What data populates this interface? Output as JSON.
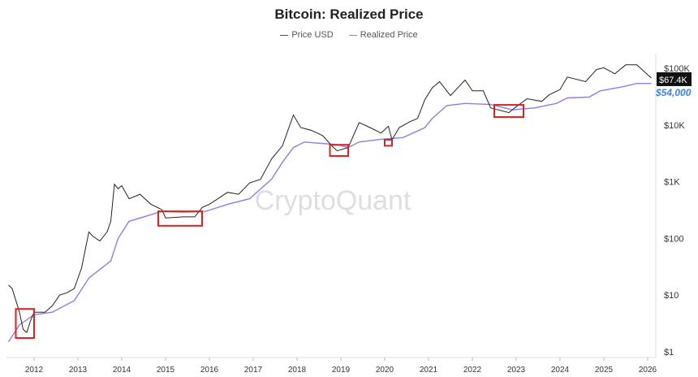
{
  "chart_data": {
    "type": "line",
    "title": "Bitcoin: Realized Price",
    "watermark": "CryptoQuant",
    "y_scale": "log",
    "ylim": [
      1,
      200000
    ],
    "y_ticks": [
      {
        "v": 1,
        "label": "$1"
      },
      {
        "v": 10,
        "label": "$10"
      },
      {
        "v": 100,
        "label": "$100"
      },
      {
        "v": 1000,
        "label": "$1K"
      },
      {
        "v": 10000,
        "label": "$10K"
      },
      {
        "v": 100000,
        "label": "$100K"
      }
    ],
    "x_ticks": [
      "2012",
      "2013",
      "2014",
      "2015",
      "2016",
      "2017",
      "2018",
      "2019",
      "2020",
      "2021",
      "2022",
      "2023",
      "2024",
      "2025",
      "2026"
    ],
    "legend_position": "top-center",
    "grid": false,
    "series": [
      {
        "name": "Price USD",
        "color": "#222222",
        "points": [
          [
            "2011-06",
            15
          ],
          [
            "2011-07",
            13
          ],
          [
            "2011-09",
            5
          ],
          [
            "2011-10",
            2.5
          ],
          [
            "2011-11",
            2.2
          ],
          [
            "2011-12",
            3.5
          ],
          [
            "2012-01",
            5
          ],
          [
            "2012-04",
            5
          ],
          [
            "2012-06",
            6.5
          ],
          [
            "2012-08",
            10
          ],
          [
            "2012-10",
            11
          ],
          [
            "2012-12",
            13
          ],
          [
            "2013-02",
            30
          ],
          [
            "2013-04",
            130
          ],
          [
            "2013-05",
            110
          ],
          [
            "2013-07",
            90
          ],
          [
            "2013-09",
            130
          ],
          [
            "2013-10",
            200
          ],
          [
            "2013-11",
            900
          ],
          [
            "2013-12",
            750
          ],
          [
            "2014-01",
            850
          ],
          [
            "2014-03",
            500
          ],
          [
            "2014-06",
            600
          ],
          [
            "2014-09",
            400
          ],
          [
            "2014-12",
            320
          ],
          [
            "2015-01",
            230
          ],
          [
            "2015-06",
            240
          ],
          [
            "2015-09",
            240
          ],
          [
            "2015-11",
            350
          ],
          [
            "2016-01",
            400
          ],
          [
            "2016-06",
            650
          ],
          [
            "2016-09",
            600
          ],
          [
            "2016-12",
            950
          ],
          [
            "2017-03",
            1100
          ],
          [
            "2017-06",
            2500
          ],
          [
            "2017-09",
            4300
          ],
          [
            "2017-12",
            15000
          ],
          [
            "2018-02",
            9000
          ],
          [
            "2018-05",
            8000
          ],
          [
            "2018-08",
            6500
          ],
          [
            "2018-11",
            4000
          ],
          [
            "2018-12",
            3500
          ],
          [
            "2019-03",
            4000
          ],
          [
            "2019-06",
            11000
          ],
          [
            "2019-09",
            9000
          ],
          [
            "2019-12",
            7200
          ],
          [
            "2020-02",
            9500
          ],
          [
            "2020-03",
            5500
          ],
          [
            "2020-05",
            9000
          ],
          [
            "2020-08",
            11500
          ],
          [
            "2020-10",
            13000
          ],
          [
            "2020-12",
            28000
          ],
          [
            "2021-02",
            45000
          ],
          [
            "2021-04",
            58000
          ],
          [
            "2021-07",
            33000
          ],
          [
            "2021-11",
            62000
          ],
          [
            "2022-01",
            40000
          ],
          [
            "2022-04",
            40000
          ],
          [
            "2022-06",
            20000
          ],
          [
            "2022-11",
            16500
          ],
          [
            "2023-01",
            21000
          ],
          [
            "2023-04",
            29000
          ],
          [
            "2023-08",
            26000
          ],
          [
            "2023-10",
            34000
          ],
          [
            "2024-01",
            42000
          ],
          [
            "2024-03",
            70000
          ],
          [
            "2024-08",
            58000
          ],
          [
            "2024-11",
            95000
          ],
          [
            "2025-01",
            102000
          ],
          [
            "2025-04",
            80000
          ],
          [
            "2025-07",
            115000
          ],
          [
            "2025-10",
            115000
          ],
          [
            "2025-12",
            88000
          ],
          [
            "2026-02",
            67400
          ]
        ]
      },
      {
        "name": "Realized Price",
        "color": "#8b7fe8",
        "points": [
          [
            "2011-06",
            1.5
          ],
          [
            "2011-09",
            3
          ],
          [
            "2012-01",
            4.5
          ],
          [
            "2012-06",
            5
          ],
          [
            "2012-12",
            8
          ],
          [
            "2013-04",
            20
          ],
          [
            "2013-10",
            40
          ],
          [
            "2013-12",
            100
          ],
          [
            "2014-03",
            200
          ],
          [
            "2014-12",
            300
          ],
          [
            "2015-06",
            290
          ],
          [
            "2015-12",
            300
          ],
          [
            "2016-06",
            400
          ],
          [
            "2016-12",
            500
          ],
          [
            "2017-06",
            1100
          ],
          [
            "2017-09",
            2200
          ],
          [
            "2017-12",
            4000
          ],
          [
            "2018-03",
            5000
          ],
          [
            "2018-12",
            4500
          ],
          [
            "2019-03",
            4000
          ],
          [
            "2019-06",
            5000
          ],
          [
            "2019-12",
            5600
          ],
          [
            "2020-06",
            6000
          ],
          [
            "2020-12",
            9000
          ],
          [
            "2021-02",
            13000
          ],
          [
            "2021-06",
            22000
          ],
          [
            "2021-11",
            24000
          ],
          [
            "2022-06",
            23000
          ],
          [
            "2022-12",
            18500
          ],
          [
            "2023-06",
            20000
          ],
          [
            "2023-12",
            24000
          ],
          [
            "2024-03",
            30000
          ],
          [
            "2024-09",
            31000
          ],
          [
            "2024-12",
            40000
          ],
          [
            "2025-06",
            47000
          ],
          [
            "2025-10",
            54000
          ],
          [
            "2026-02",
            54000
          ]
        ]
      }
    ],
    "last_value_labels": [
      {
        "series": "Price USD",
        "label": "$67.4K",
        "value": 67400,
        "bg": "#111111",
        "color": "#ffffff"
      },
      {
        "series": "Realized Price",
        "label": "$54,000",
        "value": 54000,
        "color": "#3b82f6"
      }
    ],
    "highlight_boxes": [
      {
        "from": "2011-08",
        "to": "2012-01",
        "low": 1.75,
        "high": 5.7,
        "color": "#e02020"
      },
      {
        "from": "2014-11",
        "to": "2015-11",
        "low": 167,
        "high": 300,
        "color": "#e02020"
      },
      {
        "from": "2018-10",
        "to": "2019-03",
        "low": 2840,
        "high": 4470,
        "color": "#e02020"
      },
      {
        "from": "2020-01",
        "to": "2020-03",
        "low": 4300,
        "high": 5500,
        "color": "#e02020"
      },
      {
        "from": "2022-07",
        "to": "2023-03",
        "low": 13800,
        "high": 22600,
        "color": "#e02020"
      }
    ]
  }
}
